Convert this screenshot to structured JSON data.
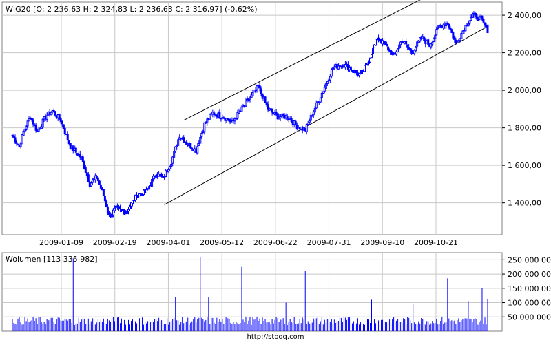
{
  "price_panel": {
    "label": "WIG20 [O: 2 236,63  H: 2 324,83  L: 2 236,63  C: 2 316,97] (-0,62%)",
    "y_ticks": [
      {
        "value": 2400,
        "label": "2 400,00"
      },
      {
        "value": 2200,
        "label": "2 200,00"
      },
      {
        "value": 2000,
        "label": "2 000,00"
      },
      {
        "value": 1800,
        "label": "1 800,00"
      },
      {
        "value": 1600,
        "label": "1 600,00"
      },
      {
        "value": 1400,
        "label": "1 400,00"
      }
    ]
  },
  "volume_panel": {
    "label": "Wolumen [113 335 982]",
    "y_ticks": [
      {
        "value": 250000000,
        "label": "250 000 000"
      },
      {
        "value": 200000000,
        "label": "200 000 000"
      },
      {
        "value": 150000000,
        "label": "150 000 000"
      },
      {
        "value": 100000000,
        "label": "100 000 000"
      },
      {
        "value": 50000000,
        "label": "50 000 000"
      }
    ]
  },
  "x_ticks": [
    "2009-01-09",
    "2009-02-19",
    "2009-04-01",
    "2009-05-12",
    "2009-06-22",
    "2009-07-31",
    "2009-09-10",
    "2009-10-21"
  ],
  "footer_text": "http://stooq.com",
  "colors": {
    "candles": "#0000ff",
    "trend": "#000000",
    "grid": "#c8c8c8",
    "border": "#808080",
    "volume": "#0000ff"
  },
  "chart_data": [
    {
      "type": "line",
      "name": "WIG20",
      "xlabel": "",
      "ylabel": "",
      "ylim": [
        1230,
        2470
      ],
      "grid": true,
      "x": [
        "2009-01-09",
        "2009-02-19",
        "2009-04-01",
        "2009-05-12",
        "2009-06-22",
        "2009-07-31",
        "2009-09-10",
        "2009-10-21"
      ],
      "anchors": [
        {
          "i": 0,
          "v": 1760
        },
        {
          "i": 5,
          "v": 1700
        },
        {
          "i": 8,
          "v": 1780
        },
        {
          "i": 13,
          "v": 1860
        },
        {
          "i": 18,
          "v": 1780
        },
        {
          "i": 24,
          "v": 1860
        },
        {
          "i": 29,
          "v": 1890
        },
        {
          "i": 35,
          "v": 1840
        },
        {
          "i": 42,
          "v": 1700
        },
        {
          "i": 50,
          "v": 1640
        },
        {
          "i": 56,
          "v": 1500
        },
        {
          "i": 61,
          "v": 1540
        },
        {
          "i": 66,
          "v": 1440
        },
        {
          "i": 70,
          "v": 1330
        },
        {
          "i": 75,
          "v": 1370
        },
        {
          "i": 82,
          "v": 1350
        },
        {
          "i": 90,
          "v": 1440
        },
        {
          "i": 97,
          "v": 1460
        },
        {
          "i": 104,
          "v": 1560
        },
        {
          "i": 109,
          "v": 1530
        },
        {
          "i": 115,
          "v": 1620
        },
        {
          "i": 121,
          "v": 1760
        },
        {
          "i": 126,
          "v": 1720
        },
        {
          "i": 133,
          "v": 1680
        },
        {
          "i": 139,
          "v": 1820
        },
        {
          "i": 145,
          "v": 1880
        },
        {
          "i": 152,
          "v": 1860
        },
        {
          "i": 159,
          "v": 1830
        },
        {
          "i": 166,
          "v": 1900
        },
        {
          "i": 172,
          "v": 1960
        },
        {
          "i": 178,
          "v": 2020
        },
        {
          "i": 185,
          "v": 1900
        },
        {
          "i": 192,
          "v": 1860
        },
        {
          "i": 199,
          "v": 1860
        },
        {
          "i": 206,
          "v": 1810
        },
        {
          "i": 212,
          "v": 1790
        },
        {
          "i": 218,
          "v": 1890
        },
        {
          "i": 225,
          "v": 2000
        },
        {
          "i": 232,
          "v": 2120
        },
        {
          "i": 239,
          "v": 2140
        },
        {
          "i": 246,
          "v": 2110
        },
        {
          "i": 252,
          "v": 2080
        },
        {
          "i": 258,
          "v": 2160
        },
        {
          "i": 264,
          "v": 2280
        },
        {
          "i": 270,
          "v": 2240
        },
        {
          "i": 276,
          "v": 2180
        },
        {
          "i": 282,
          "v": 2270
        },
        {
          "i": 289,
          "v": 2200
        },
        {
          "i": 296,
          "v": 2280
        },
        {
          "i": 302,
          "v": 2240
        },
        {
          "i": 309,
          "v": 2340
        },
        {
          "i": 315,
          "v": 2360
        },
        {
          "i": 321,
          "v": 2250
        },
        {
          "i": 327,
          "v": 2330
        },
        {
          "i": 333,
          "v": 2400
        },
        {
          "i": 339,
          "v": 2380
        },
        {
          "i": 344,
          "v": 2320
        }
      ],
      "n_points": 345,
      "trend_lines": [
        {
          "i1": 110,
          "v1": 1390,
          "i2": 344,
          "v2": 2340
        },
        {
          "i1": 124,
          "v1": 1840,
          "i2": 300,
          "v2": 2500
        }
      ]
    },
    {
      "type": "bar",
      "name": "Wolumen",
      "ylim": [
        0,
        275000000
      ],
      "base_level": 40000000,
      "spikes": [
        {
          "i": 44,
          "v": 255000000
        },
        {
          "i": 118,
          "v": 120000000
        },
        {
          "i": 136,
          "v": 258000000
        },
        {
          "i": 142,
          "v": 120000000
        },
        {
          "i": 166,
          "v": 225000000
        },
        {
          "i": 198,
          "v": 100000000
        },
        {
          "i": 212,
          "v": 210000000
        },
        {
          "i": 260,
          "v": 110000000
        },
        {
          "i": 290,
          "v": 95000000
        },
        {
          "i": 315,
          "v": 185000000
        },
        {
          "i": 330,
          "v": 105000000
        },
        {
          "i": 340,
          "v": 150000000
        },
        {
          "i": 344,
          "v": 113335982
        }
      ]
    }
  ]
}
